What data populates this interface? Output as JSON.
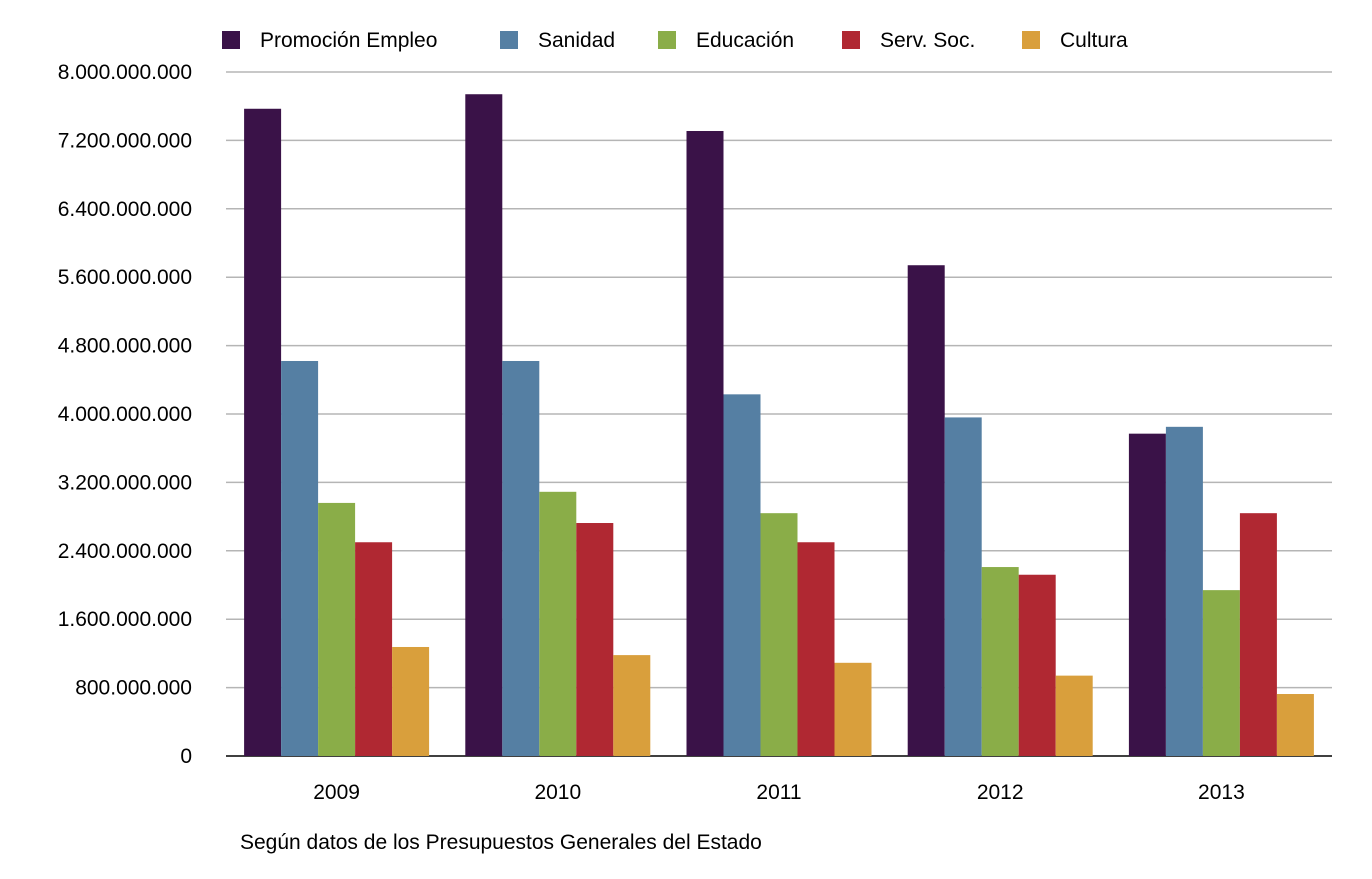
{
  "chart_data": {
    "type": "bar",
    "title": "",
    "xlabel": "",
    "ylabel": "",
    "note": "Según datos de los Presupuestos Generales del Estado",
    "categories": [
      "2009",
      "2010",
      "2011",
      "2012",
      "2013"
    ],
    "ylim": [
      0,
      8000000000
    ],
    "yticks": [
      0,
      800000000,
      1600000000,
      2400000000,
      3200000000,
      4000000000,
      4800000000,
      5600000000,
      6400000000,
      7200000000,
      8000000000
    ],
    "ytick_labels": [
      "0",
      "800.000.000",
      "1.600.000.000",
      "2.400.000.000",
      "3.200.000.000",
      "4.000.000.000",
      "4.800.000.000",
      "5.600.000.000",
      "6.400.000.000",
      "7.200.000.000",
      "8.000.000.000"
    ],
    "grid": true,
    "legend_position": "top",
    "series": [
      {
        "name": "Promoción Empleo",
        "color": "#3a1248",
        "values": [
          7570000000,
          7740000000,
          7310000000,
          5740000000,
          3770000000
        ]
      },
      {
        "name": "Sanidad",
        "color": "#557fa3",
        "values": [
          4620000000,
          4620000000,
          4230000000,
          3960000000,
          3850000000
        ]
      },
      {
        "name": "Educación",
        "color": "#8aad48",
        "values": [
          2960000000,
          3090000000,
          2840000000,
          2210000000,
          1940000000
        ]
      },
      {
        "name": "Serv. Soc.",
        "color": "#b02832",
        "values": [
          2500000000,
          2725000000,
          2500000000,
          2120000000,
          2840000000
        ]
      },
      {
        "name": "Cultura",
        "color": "#d99f3c",
        "values": [
          1275000000,
          1180000000,
          1090000000,
          940000000,
          725000000
        ]
      }
    ]
  }
}
